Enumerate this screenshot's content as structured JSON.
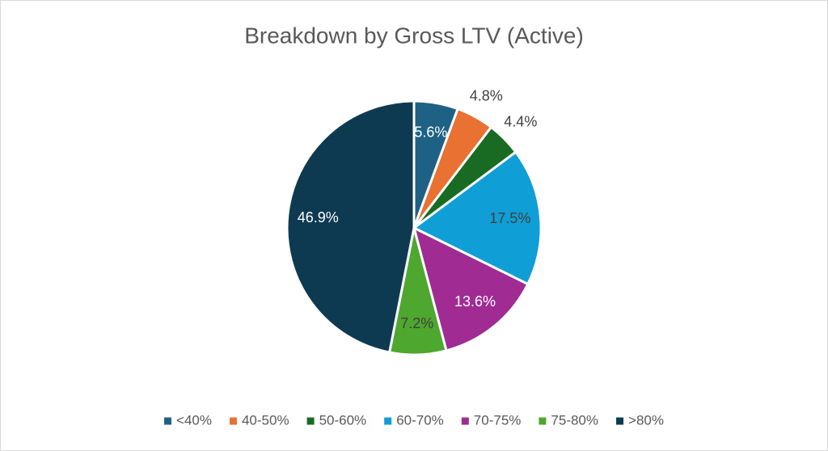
{
  "chart_data": {
    "type": "pie",
    "title": "Breakdown by Gross LTV (Active)",
    "categories": [
      "<40%",
      "40-50%",
      "50-60%",
      "60-70%",
      "70-75%",
      "75-80%",
      ">80%"
    ],
    "values": [
      5.6,
      4.8,
      4.4,
      17.5,
      13.6,
      7.2,
      46.9
    ],
    "value_labels": [
      "5.6%",
      "4.8%",
      "4.4%",
      "17.5%",
      "13.6%",
      "7.2%",
      "46.9%"
    ],
    "colors": [
      "#1f6184",
      "#e97132",
      "#196b24",
      "#0f9ed5",
      "#a02b93",
      "#4ea72e",
      "#0e3a51"
    ],
    "legend": "bottom"
  }
}
